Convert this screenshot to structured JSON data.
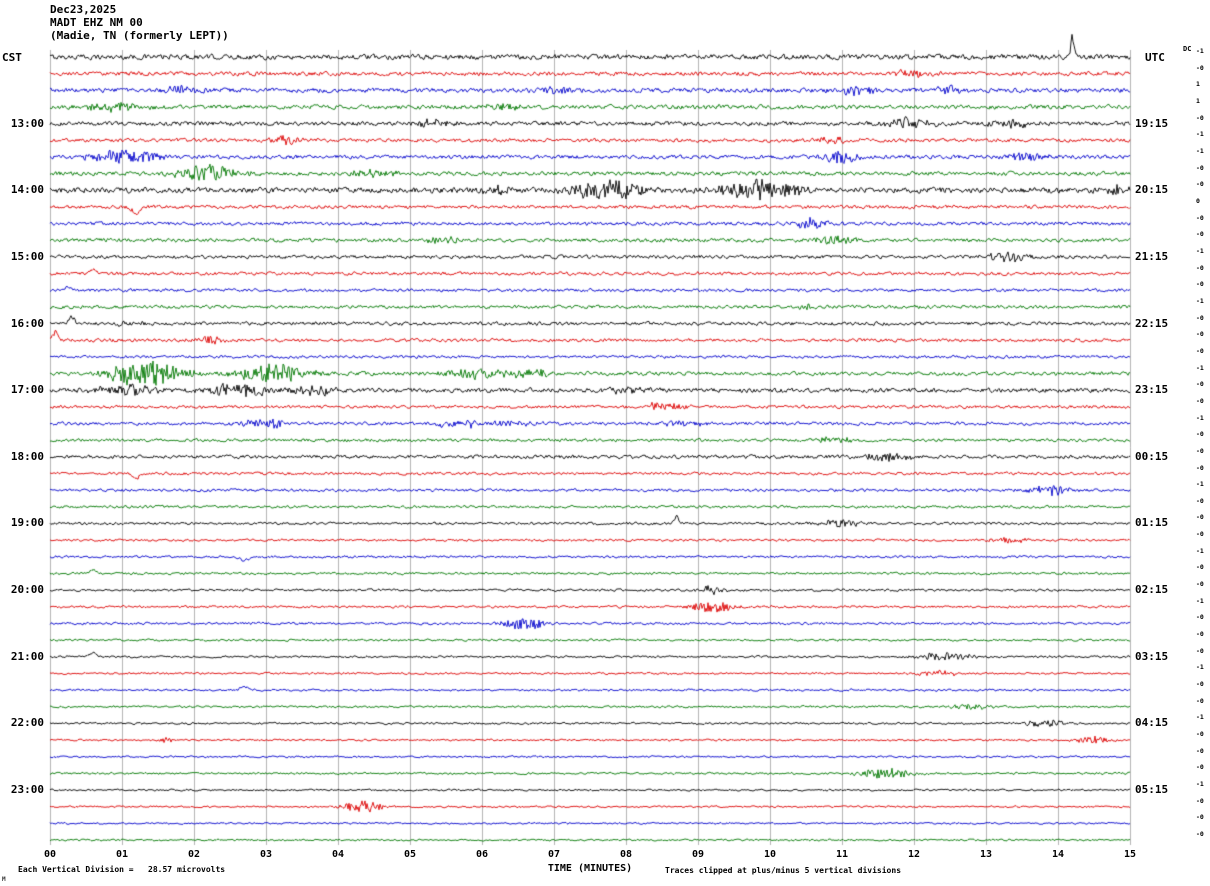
{
  "header": {
    "date": "Dec23,2025",
    "station": "MADT EHZ NM 00",
    "location": "(Madie, TN (formerly LEPT))"
  },
  "axes": {
    "left_tz": "CST",
    "right_tz": "UTC",
    "dc_label": "DC",
    "x_title": "TIME (MINUTES)",
    "x_ticks": [
      "00",
      "01",
      "02",
      "03",
      "04",
      "05",
      "06",
      "07",
      "08",
      "09",
      "10",
      "11",
      "12",
      "13",
      "14",
      "15"
    ]
  },
  "footer": {
    "scale_note": "Each Vertical Division =   28.57 microvolts",
    "clip_note": "Traces clipped at plus/minus 5 vertical divisions",
    "corner_mark": "M"
  },
  "chart_data": {
    "type": "line",
    "title": "MADT EHZ NM 00 (Madie, TN (formerly LEPT)) helicorder Dec23,2025",
    "xlabel": "TIME (MINUTES)",
    "x_range": [
      0,
      15
    ],
    "rows": 48,
    "minutes_per_row": 15,
    "rows_per_hour": 4,
    "first_hour_label_row": 4,
    "row_colors": [
      "#000000",
      "#dd0000",
      "#0000cc",
      "#007700"
    ],
    "grid_color": "#9a9a9a",
    "left_labels": [
      "13:00",
      "14:00",
      "15:00",
      "16:00",
      "17:00",
      "18:00",
      "19:00",
      "20:00",
      "21:00",
      "22:00",
      "23:00"
    ],
    "right_labels": [
      "19:15",
      "20:15",
      "21:15",
      "22:15",
      "23:15",
      "00:15",
      "01:15",
      "02:15",
      "03:15",
      "04:15",
      "05:15"
    ],
    "dc_values": [
      "-1",
      "-0",
      "1",
      "1",
      "-0",
      "-1",
      "-1",
      "-0",
      "-0",
      "0",
      "-0",
      "-0",
      "-1",
      "-0",
      "-0",
      "-1",
      "-0",
      "-0",
      "-0",
      "-1",
      "-0",
      "-0",
      "-1",
      "-0",
      "-0",
      "-0",
      "-1",
      "-0",
      "-0",
      "-0",
      "-1",
      "-0",
      "-0",
      "-1",
      "-0",
      "-0",
      "-0",
      "-1",
      "-0",
      "-0",
      "-1",
      "-0",
      "-0",
      "-0",
      "-1",
      "-0",
      "-0",
      "-0"
    ],
    "noise_amp": [
      2.2,
      1.7,
      1.9,
      1.8,
      1.8,
      1.5,
      1.7,
      1.7,
      2.4,
      1.5,
      1.5,
      1.6,
      1.5,
      1.4,
      1.3,
      1.4,
      1.5,
      1.4,
      1.2,
      1.6,
      1.9,
      1.3,
      1.4,
      1.3,
      1.5,
      1.2,
      1.2,
      1.1,
      1.1,
      1.0,
      1.0,
      1.0,
      1.0,
      1.0,
      1.0,
      0.9,
      0.9,
      0.9,
      0.9,
      0.9,
      0.9,
      0.8,
      0.8,
      0.9,
      0.8,
      0.8,
      0.8,
      0.8
    ],
    "clip_divisions": 5,
    "events": [
      {
        "row": 0,
        "t": 14.2,
        "dur": 0.03,
        "amp": 30,
        "dir": 1
      },
      {
        "row": 1,
        "t": 12.0,
        "dur": 0.4,
        "amp": 3
      },
      {
        "row": 2,
        "t": 1.9,
        "dur": 0.3,
        "amp": 4
      },
      {
        "row": 2,
        "t": 7.0,
        "dur": 0.25,
        "amp": 4
      },
      {
        "row": 2,
        "t": 11.2,
        "dur": 0.3,
        "amp": 4
      },
      {
        "row": 2,
        "t": 12.5,
        "dur": 0.2,
        "amp": 4
      },
      {
        "row": 3,
        "t": 0.9,
        "dur": 0.5,
        "amp": 4
      },
      {
        "row": 3,
        "t": 6.3,
        "dur": 0.3,
        "amp": 3
      },
      {
        "row": 3,
        "t": 9.2,
        "dur": 0.2,
        "amp": 3
      },
      {
        "row": 4,
        "t": 5.3,
        "dur": 0.3,
        "amp": 4
      },
      {
        "row": 4,
        "t": 11.9,
        "dur": 0.35,
        "amp": 5
      },
      {
        "row": 4,
        "t": 13.4,
        "dur": 0.3,
        "amp": 4
      },
      {
        "row": 5,
        "t": 3.3,
        "dur": 0.25,
        "amp": 4
      },
      {
        "row": 5,
        "t": 10.9,
        "dur": 0.3,
        "amp": 3
      },
      {
        "row": 6,
        "t": 1.0,
        "dur": 0.45,
        "amp": 8
      },
      {
        "row": 6,
        "t": 11.0,
        "dur": 0.25,
        "amp": 6
      },
      {
        "row": 6,
        "t": 13.6,
        "dur": 0.3,
        "amp": 4
      },
      {
        "row": 7,
        "t": 2.2,
        "dur": 0.45,
        "amp": 9
      },
      {
        "row": 7,
        "t": 4.5,
        "dur": 0.4,
        "amp": 4
      },
      {
        "row": 8,
        "t": 6.2,
        "dur": 0.3,
        "amp": 4
      },
      {
        "row": 8,
        "t": 7.7,
        "dur": 0.45,
        "amp": 11
      },
      {
        "row": 8,
        "t": 9.9,
        "dur": 0.5,
        "amp": 11
      },
      {
        "row": 8,
        "t": 14.8,
        "dur": 0.2,
        "amp": 6
      },
      {
        "row": 9,
        "t": 1.2,
        "dur": 0.08,
        "amp": 8,
        "dir": -1
      },
      {
        "row": 10,
        "t": 10.6,
        "dur": 0.3,
        "amp": 5
      },
      {
        "row": 11,
        "t": 5.5,
        "dur": 0.3,
        "amp": 3
      },
      {
        "row": 11,
        "t": 10.9,
        "dur": 0.3,
        "amp": 4
      },
      {
        "row": 12,
        "t": 13.3,
        "dur": 0.3,
        "amp": 5
      },
      {
        "row": 13,
        "t": 0.6,
        "dur": 0.06,
        "amp": 6,
        "dir": 1
      },
      {
        "row": 14,
        "t": 0.25,
        "dur": 0.06,
        "amp": 5,
        "dir": 1
      },
      {
        "row": 15,
        "t": 10.5,
        "dur": 0.1,
        "amp": 4
      },
      {
        "row": 16,
        "t": 0.3,
        "dur": 0.05,
        "amp": 10,
        "dir": 1
      },
      {
        "row": 16,
        "t": 1.1,
        "dur": 0.2,
        "amp": 3
      },
      {
        "row": 17,
        "t": 0.08,
        "dur": 0.05,
        "amp": 11,
        "dir": 1
      },
      {
        "row": 17,
        "t": 2.2,
        "dur": 0.2,
        "amp": 5
      },
      {
        "row": 19,
        "t": 1.35,
        "dur": 0.55,
        "amp": 13
      },
      {
        "row": 19,
        "t": 3.1,
        "dur": 0.5,
        "amp": 10
      },
      {
        "row": 19,
        "t": 5.9,
        "dur": 0.45,
        "amp": 5
      },
      {
        "row": 19,
        "t": 6.7,
        "dur": 0.3,
        "amp": 4
      },
      {
        "row": 20,
        "t": 1.1,
        "dur": 0.5,
        "amp": 5
      },
      {
        "row": 20,
        "t": 2.6,
        "dur": 0.5,
        "amp": 6
      },
      {
        "row": 20,
        "t": 3.6,
        "dur": 0.4,
        "amp": 5
      },
      {
        "row": 20,
        "t": 8.0,
        "dur": 0.3,
        "amp": 3
      },
      {
        "row": 21,
        "t": 8.5,
        "dur": 0.3,
        "amp": 5
      },
      {
        "row": 22,
        "t": 3.0,
        "dur": 0.3,
        "amp": 6
      },
      {
        "row": 22,
        "t": 5.9,
        "dur": 0.8,
        "amp": 3
      },
      {
        "row": 22,
        "t": 8.8,
        "dur": 0.3,
        "amp": 4
      },
      {
        "row": 23,
        "t": 10.9,
        "dur": 0.3,
        "amp": 3
      },
      {
        "row": 24,
        "t": 11.6,
        "dur": 0.35,
        "amp": 4
      },
      {
        "row": 25,
        "t": 1.2,
        "dur": 0.07,
        "amp": 6,
        "dir": -1
      },
      {
        "row": 26,
        "t": 13.9,
        "dur": 0.3,
        "amp": 5
      },
      {
        "row": 28,
        "t": 8.7,
        "dur": 0.05,
        "amp": 8,
        "dir": 1
      },
      {
        "row": 28,
        "t": 11.0,
        "dur": 0.3,
        "amp": 4
      },
      {
        "row": 29,
        "t": 13.3,
        "dur": 0.25,
        "amp": 3
      },
      {
        "row": 30,
        "t": 2.7,
        "dur": 0.08,
        "amp": 5,
        "dir": -1
      },
      {
        "row": 31,
        "t": 0.6,
        "dur": 0.07,
        "amp": 5,
        "dir": 1
      },
      {
        "row": 32,
        "t": 9.2,
        "dur": 0.2,
        "amp": 4
      },
      {
        "row": 33,
        "t": 9.2,
        "dur": 0.3,
        "amp": 6
      },
      {
        "row": 34,
        "t": 6.6,
        "dur": 0.3,
        "amp": 6
      },
      {
        "row": 36,
        "t": 0.6,
        "dur": 0.06,
        "amp": 6,
        "dir": 1
      },
      {
        "row": 36,
        "t": 12.4,
        "dur": 0.4,
        "amp": 4
      },
      {
        "row": 37,
        "t": 12.3,
        "dur": 0.3,
        "amp": 3
      },
      {
        "row": 38,
        "t": 2.7,
        "dur": 0.08,
        "amp": 4,
        "dir": 1
      },
      {
        "row": 39,
        "t": 12.8,
        "dur": 0.3,
        "amp": 3
      },
      {
        "row": 40,
        "t": 13.8,
        "dur": 0.3,
        "amp": 4
      },
      {
        "row": 41,
        "t": 1.6,
        "dur": 0.1,
        "amp": 3
      },
      {
        "row": 41,
        "t": 14.5,
        "dur": 0.25,
        "amp": 4
      },
      {
        "row": 43,
        "t": 11.6,
        "dur": 0.4,
        "amp": 5
      },
      {
        "row": 45,
        "t": 4.35,
        "dur": 0.3,
        "amp": 6
      }
    ]
  }
}
